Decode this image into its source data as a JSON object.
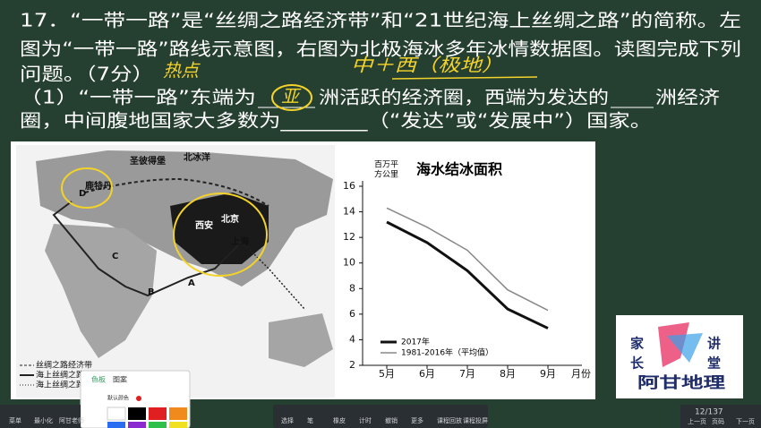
{
  "question": {
    "line1": "17．“一带一路”是“丝绸之路经济带”和“21世纪海上丝绸之路”的简称。左",
    "line2": "图为“一带一路”路线示意图，右图为北极海冰多年冰情数据图。读图完成下列",
    "line3": "问题。（7分）",
    "line4a": "（1）“一带一路”东端为",
    "line4b": "洲活跃的经济圈，西端为发达的",
    "line4c": "洲经济",
    "line5": "圈，中间腹地国家大多数为________（“发达”或“发展中”）国家。",
    "handwriting": [
      "热点",
      "中＋西（极地）",
      "亚"
    ]
  },
  "map": {
    "labels": [
      "圣彼得堡",
      "北冰洋",
      "鹿特丹",
      "D",
      "西安",
      "北京",
      "上海",
      "C",
      "B",
      "A"
    ],
    "legend": [
      "丝绸之路经济带",
      "海上丝绸之路",
      "海上丝绸之路"
    ]
  },
  "chart_data": {
    "type": "line",
    "title": "海水结冰面积",
    "ylabel": [
      "百万平",
      "方公里"
    ],
    "xlabel": "月份",
    "categories": [
      "5月",
      "6月",
      "7月",
      "8月",
      "9月"
    ],
    "series": [
      {
        "name": "2017年",
        "color": "#111111",
        "values": [
          13.2,
          11.6,
          9.4,
          6.4,
          4.9
        ]
      },
      {
        "name": "1981-2016年（平均值）",
        "color": "#888888",
        "values": [
          14.3,
          12.8,
          11.0,
          7.9,
          6.3
        ]
      }
    ],
    "ylim": [
      2,
      16
    ],
    "yticks": [
      2,
      4,
      6,
      8,
      10,
      12,
      14,
      16
    ]
  },
  "logo": {
    "chars": [
      "家",
      "长",
      "讲",
      "堂"
    ],
    "name": "阿甘地理"
  },
  "palette": {
    "tabs": [
      "色板",
      "图案"
    ],
    "label": "默认颜色"
  },
  "toolbar": {
    "left": [
      "菜单",
      "最小化",
      "阿甘老师"
    ],
    "center": [
      "选择",
      "笔",
      "橡皮",
      "计时",
      "撤销",
      "更多",
      "课程回放",
      "课程投屏"
    ],
    "page": "12/137",
    "nav": [
      "上一页",
      "页码",
      "下一页"
    ]
  }
}
